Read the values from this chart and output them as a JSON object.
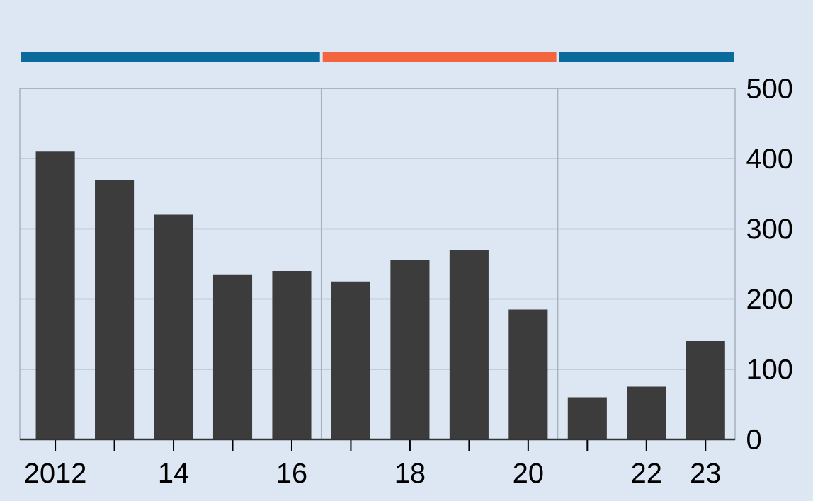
{
  "chart_data": {
    "type": "bar",
    "x": [
      2012,
      2013,
      2014,
      2015,
      2016,
      2017,
      2018,
      2019,
      2020,
      2021,
      2022,
      2023
    ],
    "values": [
      410,
      370,
      320,
      235,
      240,
      225,
      255,
      270,
      185,
      60,
      75,
      140
    ],
    "color": "#3c3c3c",
    "xlim": [
      2011.4,
      2023.5
    ],
    "xticks": [
      {
        "value": 2012,
        "label": "2012"
      },
      {
        "value": 2013,
        "label": null
      },
      {
        "value": 2014,
        "label": "14"
      },
      {
        "value": 2015,
        "label": null
      },
      {
        "value": 2016,
        "label": "16"
      },
      {
        "value": 2017,
        "label": null
      },
      {
        "value": 2018,
        "label": "18"
      },
      {
        "value": 2019,
        "label": null
      },
      {
        "value": 2020,
        "label": "20"
      },
      {
        "value": 2021,
        "label": null
      },
      {
        "value": 2022,
        "label": "22"
      },
      {
        "value": 2023,
        "label": "23"
      }
    ],
    "ylim": [
      0,
      500
    ],
    "yticks": [
      0,
      100,
      200,
      300,
      400,
      500
    ],
    "grid": "y",
    "ref_lines": [
      {
        "axis": "x",
        "value": 2016.5,
        "color": "#a6b2c0"
      },
      {
        "axis": "x",
        "value": 2020.5,
        "color": "#a6b2c0"
      }
    ]
  }
}
